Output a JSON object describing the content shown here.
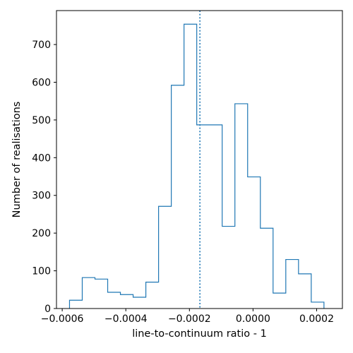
{
  "chart_data": {
    "type": "histogram",
    "title": "",
    "xlabel": "line-to-continuum ratio - 1",
    "ylabel": "Number of realisations",
    "xlim": [
      -0.000618,
      0.000281
    ],
    "ylim": [
      0,
      790
    ],
    "x_ticks": [
      {
        "value": -0.0006,
        "label": "−0.0006"
      },
      {
        "value": -0.0004,
        "label": "−0.0004"
      },
      {
        "value": -0.0002,
        "label": "−0.0002"
      },
      {
        "value": 0.0,
        "label": "0.0000"
      },
      {
        "value": 0.0002,
        "label": "0.0002"
      }
    ],
    "y_ticks": [
      {
        "value": 0,
        "label": "0"
      },
      {
        "value": 100,
        "label": "100"
      },
      {
        "value": 200,
        "label": "200"
      },
      {
        "value": 300,
        "label": "300"
      },
      {
        "value": 400,
        "label": "400"
      },
      {
        "value": 500,
        "label": "500"
      },
      {
        "value": 600,
        "label": "600"
      },
      {
        "value": 700,
        "label": "700"
      }
    ],
    "bin_edges": [
      -0.000577,
      -0.000537,
      -0.000497,
      -0.000457,
      -0.000417,
      -0.000377,
      -0.000337,
      -0.000297,
      -0.000257,
      -0.000217,
      -0.000177,
      -0.000137,
      -9.7e-05,
      -5.7e-05,
      -1.7e-05,
      2.3e-05,
      6.3e-05,
      0.000103,
      0.000143,
      0.000183,
      0.000223
    ],
    "counts": [
      22,
      82,
      78,
      43,
      37,
      30,
      70,
      271,
      592,
      754,
      487,
      487,
      218,
      543,
      349,
      213,
      41,
      130,
      92,
      17
    ],
    "vline_x": -0.000167,
    "grid": false,
    "color": "#1f77b4"
  }
}
